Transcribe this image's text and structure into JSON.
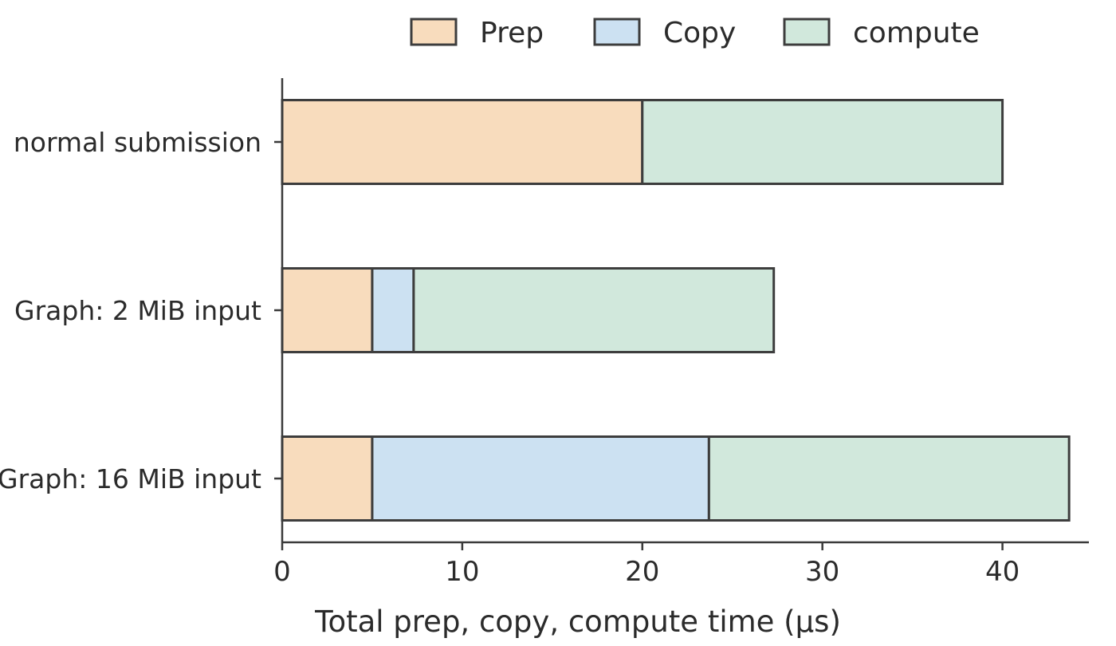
{
  "chart_data": {
    "type": "bar",
    "orientation": "horizontal",
    "stacked": true,
    "categories": [
      "normal submission",
      "Graph: 2 MiB input",
      "Graph: 16 MiB input"
    ],
    "series": [
      {
        "name": "Prep",
        "color": "#f8dcbd",
        "values": [
          20,
          5,
          5
        ]
      },
      {
        "name": "Copy",
        "color": "#cce1f2",
        "values": [
          0,
          2.3,
          18.7
        ]
      },
      {
        "name": "compute",
        "color": "#d1e8dc",
        "values": [
          20,
          20,
          20
        ]
      }
    ],
    "xlabel": "Total prep, copy, compute time (µs)",
    "ylabel": "",
    "xlim": [
      0,
      44.8
    ],
    "xticks": [
      0,
      10,
      20,
      30,
      40
    ],
    "grid": false,
    "legend_position": "top"
  }
}
